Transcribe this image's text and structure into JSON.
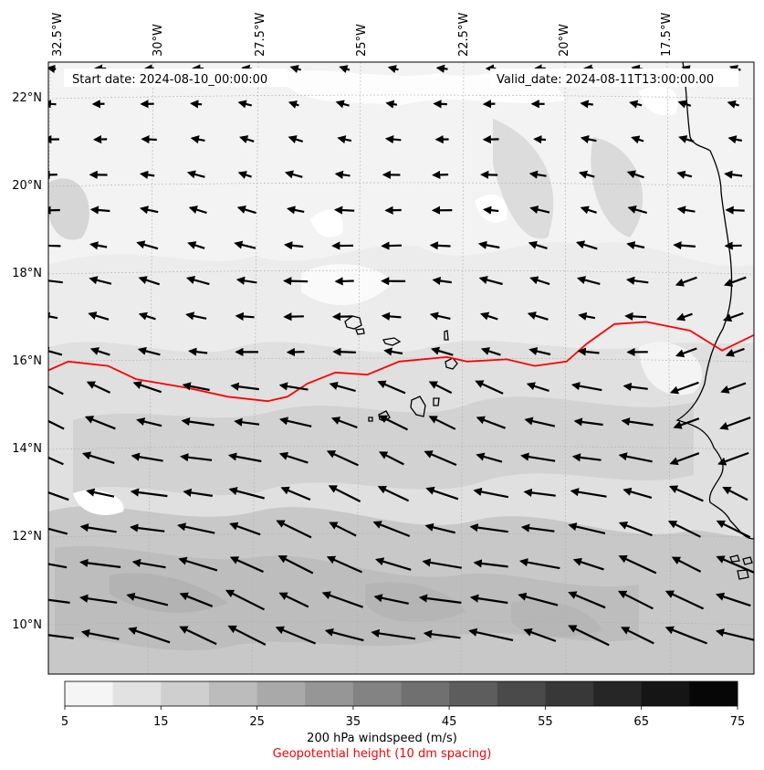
{
  "header": {
    "start_date": "Start date: 2024-08-10_00:00:00",
    "valid_date": "Valid_date: 2024-08-11T13:00:00.00"
  },
  "longitude_labels": [
    "32.5°W",
    "30°W",
    "27.5°W",
    "25°W",
    "22.5°W",
    "20°W",
    "17.5°W"
  ],
  "latitude_labels": [
    "22°N",
    "20°N",
    "18°N",
    "16°N",
    "14°N",
    "12°N",
    "10°N"
  ],
  "colorbar": {
    "ticks": [
      "5",
      "15",
      "25",
      "35",
      "45",
      "55",
      "65",
      "75"
    ],
    "colors": [
      "#f5f5f5",
      "#e2e2e2",
      "#cfcfcf",
      "#bcbcbc",
      "#a9a9a9",
      "#969696",
      "#838383",
      "#707070",
      "#5d5d5d",
      "#4a4a4a",
      "#383838",
      "#262626",
      "#151515",
      "#060606"
    ],
    "label": "200 hPa windspeed (m/s)",
    "contour_label": "Geopotential height (10 dm spacing)",
    "contour_color": "#ff0000"
  },
  "map": {
    "extent": {
      "lon_min": -33.0,
      "lon_max": -15.3,
      "lat_min": 8.9,
      "lat_max": 22.8
    },
    "projection": "lambert conformal",
    "gridlines": true,
    "background_windspeed_range": "5-25 m/s",
    "geopotential_contour_line": [
      [
        -33.0,
        15.8
      ],
      [
        -32.5,
        16.0
      ],
      [
        -31.5,
        15.9
      ],
      [
        -30.8,
        15.6
      ],
      [
        -29.5,
        15.4
      ],
      [
        -28.5,
        15.2
      ],
      [
        -27.5,
        15.1
      ],
      [
        -27.0,
        15.2
      ],
      [
        -26.5,
        15.5
      ],
      [
        -25.8,
        15.75
      ],
      [
        -25.0,
        15.7
      ],
      [
        -24.2,
        16.0
      ],
      [
        -23.0,
        16.1
      ],
      [
        -22.5,
        16.0
      ],
      [
        -21.5,
        16.05
      ],
      [
        -20.8,
        15.9
      ],
      [
        -20.0,
        16.0
      ],
      [
        -19.5,
        16.4
      ],
      [
        -18.8,
        16.85
      ],
      [
        -18.0,
        16.9
      ],
      [
        -16.9,
        16.7
      ],
      [
        -16.1,
        16.25
      ],
      [
        -15.3,
        16.6
      ]
    ],
    "wind_field": "easterly to east-northeasterly, strongest (~25 m/s) south of 13°N, weakest near 16–18°N"
  }
}
